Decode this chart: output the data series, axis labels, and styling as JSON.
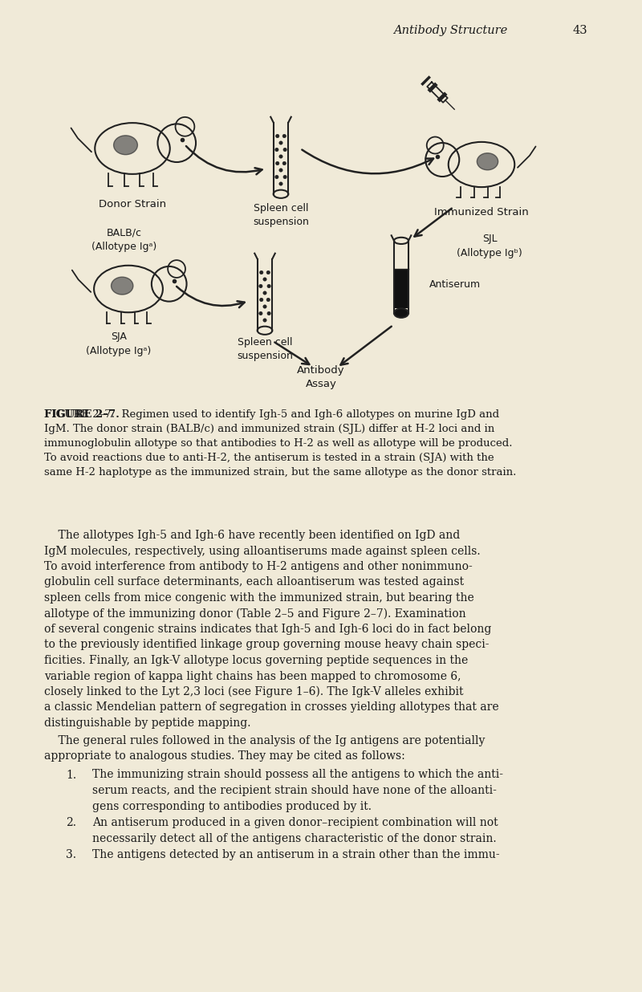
{
  "bg_color": "#f0ead8",
  "page_width": 8.0,
  "page_height": 12.36,
  "header_text": "Antibody Structure",
  "header_page": "43",
  "diagram_labels": {
    "donor_strain": "Donor Strain",
    "immunized_strain": "Immunized Strain",
    "balb_c": "BALB/c",
    "balb_allotype": "(Allotype Igᵃ)",
    "sjl": "SJL",
    "sjl_allotype": "(Allotype Igᵇ)",
    "spleen_top": "Spleen cell\nsuspension",
    "sja": "SJA",
    "sja_allotype": "(Allotype Igᵃ)",
    "spleen_bottom": "Spleen cell\nsuspension",
    "antiserum": "Antiserum",
    "antibody_assay": "Antibody\nAssay"
  },
  "text_color": "#1a1a1a",
  "fig_caption_bold": "FIGURE 2-7.",
  "fig_caption_normal": "  Regimen used to identify Igh-5 and Igh-6 allotypes on murine IgD and IgM. The donor strain (BALB/c) and immunized strain (SJL) differ at H-2 loci and in immunoglobulin allotype so that antibodies to H-2 as well as allotype will be produced. To avoid reactions due to anti-H-2, the antiserum is tested in a strain (SJA) with the same H-2 haplotype as the immunized strain, but the same allotype as the donor strain.",
  "body_p1": "    The allotypes Igh-5 and Igh-6 have recently been identified on IgD and IgM molecules, respectively, using alloantiserums made against spleen cells. To avoid interference from antibody to H-2 antigens and other nonimmuno-globulin cell surface determinants, each alloantiserum was tested against spleen cells from mice congenic with the immunized strain, but bearing the allotype of the immunizing donor (Table 2-5 and Figure 2-7). Examination of several congenic strains indicates that Igh-5 and Igh-6 loci do in fact belong to the previously identified linkage group governing mouse heavy chain speci-ficities. Finally, an Igk-V allotype locus governing peptide sequences in the variable region of kappa light chains has been mapped to chromosome 6, closely linked to the Lyt 2,3 loci (see Figure 1-6). The Igk-V alleles exhibit a classic Mendelian pattern of segregation in crosses yielding allotypes that are distinguishable by peptide mapping.",
  "body_p2": "    The general rules followed in the analysis of the Ig antigens are potentially appropriate to analogous studies. They may be cited as follows:",
  "list_item1": "The immunizing strain should possess all the antigens to which the anti-serum reacts, and the recipient strain should have none of the alloanti-gens corresponding to antibodies produced by it.",
  "list_item2": "An antiserum produced in a given donor-recipient combination will not necessarily detect all of the antigens characteristic of the donor strain.",
  "list_item3": "The antigens detected by an antiserum in a strain other than the immu-"
}
